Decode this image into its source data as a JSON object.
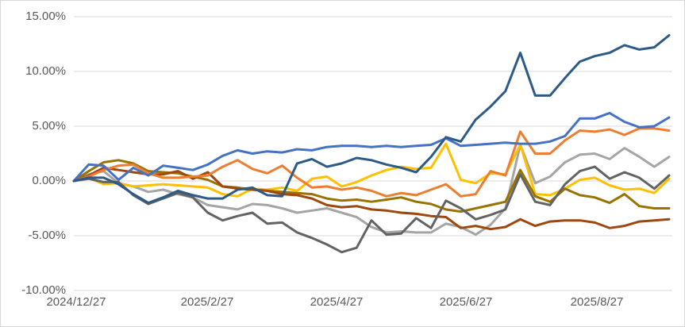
{
  "chart_data": {
    "type": "line",
    "title": "",
    "xlabel": "",
    "ylabel": "",
    "legend": "none",
    "grid": true,
    "ylim": [
      -10,
      15
    ],
    "y_gridlines_pct": [
      15,
      10,
      5,
      0,
      -5,
      -10
    ],
    "y_tick_labels": [
      "15.00%",
      "10.00%",
      "5.00%",
      "0.00%",
      "-5.00%",
      "-10.00%"
    ],
    "x_tick_labels": [
      "2024/12/27",
      "2025/2/27",
      "2025/4/27",
      "2025/6/27",
      "2025/8/27"
    ],
    "x_unit": "weekly",
    "x": [
      "2024/12/27",
      "2025/1/3",
      "2025/1/10",
      "2025/1/17",
      "2025/1/24",
      "2025/1/31",
      "2025/2/7",
      "2025/2/14",
      "2025/2/21",
      "2025/2/28",
      "2025/3/7",
      "2025/3/14",
      "2025/3/21",
      "2025/3/28",
      "2025/4/4",
      "2025/4/11",
      "2025/4/18",
      "2025/4/25",
      "2025/5/2",
      "2025/5/9",
      "2025/5/16",
      "2025/5/23",
      "2025/5/30",
      "2025/6/6",
      "2025/6/13",
      "2025/6/20",
      "2025/6/27",
      "2025/7/4",
      "2025/7/11",
      "2025/7/18",
      "2025/7/25",
      "2025/8/1",
      "2025/8/8",
      "2025/8/15",
      "2025/8/22",
      "2025/8/29",
      "2025/9/5",
      "2025/9/12",
      "2025/9/19",
      "2025/9/26",
      "2025/10/3"
    ],
    "value_unit": "percent",
    "series": [
      {
        "name": "light-gray-line",
        "color": "#A5A5A5",
        "values": [
          0,
          0.6,
          0.9,
          -0.2,
          -0.5,
          -1.0,
          -0.8,
          -1.2,
          -1.5,
          -2.2,
          -2.4,
          -2.6,
          -2.1,
          -2.2,
          -2.5,
          -2.9,
          -2.7,
          -2.5,
          -2.9,
          -3.3,
          -4.2,
          -4.7,
          -4.6,
          -4.7,
          -4.7,
          -3.9,
          -4.2,
          -4.9,
          -4.0,
          -2.5,
          3.3,
          -0.2,
          0.4,
          1.7,
          2.4,
          2.5,
          2.0,
          3.0,
          2.2,
          1.3,
          2.2
        ]
      },
      {
        "name": "yellow-line",
        "color": "#FFC000",
        "values": [
          0,
          0.3,
          -0.3,
          -0.2,
          -0.5,
          -0.4,
          -0.3,
          -0.4,
          -0.5,
          -0.6,
          -1.2,
          -1.4,
          -0.7,
          -0.8,
          -0.6,
          -0.9,
          0.2,
          0.4,
          -0.5,
          -0.1,
          0.5,
          1.0,
          1.3,
          1.1,
          1.2,
          3.4,
          0.1,
          -0.2,
          0.7,
          0.6,
          3.3,
          -1.2,
          -1.3,
          -0.7,
          0.1,
          0.3,
          -0.4,
          -0.8,
          -0.7,
          -1.1,
          0.2
        ]
      },
      {
        "name": "olive-line",
        "color": "#997300",
        "values": [
          0,
          0.9,
          1.7,
          1.9,
          1.6,
          0.9,
          0.8,
          0.7,
          0.4,
          0.1,
          -0.5,
          -0.6,
          -0.8,
          -0.9,
          -1.0,
          -1.1,
          -1.2,
          -1.6,
          -1.8,
          -1.7,
          -1.9,
          -1.7,
          -1.5,
          -1.9,
          -2.1,
          -2.6,
          -2.8,
          -2.5,
          -2.2,
          -1.9,
          1.0,
          -1.4,
          -1.9,
          -0.7,
          -1.3,
          -1.5,
          -2.0,
          -1.2,
          -2.3,
          -2.5,
          -2.5
        ]
      },
      {
        "name": "brown-line",
        "color": "#9E480E",
        "values": [
          0,
          0.5,
          1.2,
          1.0,
          0.8,
          0.6,
          0.6,
          0.9,
          0.2,
          0.8,
          -0.5,
          -0.7,
          -0.8,
          -0.9,
          -1.2,
          -1.3,
          -1.6,
          -2.2,
          -2.4,
          -2.3,
          -2.6,
          -2.7,
          -2.9,
          -3.0,
          -3.2,
          -3.3,
          -4.3,
          -4.1,
          -4.4,
          -4.2,
          -3.5,
          -4.1,
          -3.7,
          -3.6,
          -3.6,
          -3.8,
          -4.3,
          -4.1,
          -3.7,
          -3.6,
          -3.5
        ]
      },
      {
        "name": "dark-gray-line",
        "color": "#636363",
        "values": [
          0,
          0.2,
          -0.1,
          -0.1,
          -1.3,
          -2.1,
          -1.6,
          -1.1,
          -1.5,
          -2.9,
          -3.6,
          -3.2,
          -2.9,
          -3.9,
          -3.8,
          -4.7,
          -5.2,
          -5.8,
          -6.5,
          -6.1,
          -3.6,
          -4.9,
          -4.8,
          -3.4,
          -4.3,
          -1.8,
          -2.5,
          -3.5,
          -3.1,
          -2.6,
          0.6,
          -1.9,
          -2.2,
          -0.3,
          0.9,
          1.3,
          0.2,
          0.8,
          0.3,
          -0.7,
          0.5
        ]
      },
      {
        "name": "orange-line",
        "color": "#ED7D31",
        "values": [
          0,
          0.4,
          1.0,
          1.4,
          1.5,
          0.7,
          0.3,
          0.3,
          0.4,
          0.5,
          1.3,
          1.9,
          1.1,
          0.7,
          1.4,
          0.3,
          -0.6,
          -0.5,
          -0.8,
          -0.6,
          -0.9,
          -1.4,
          -1.1,
          -1.3,
          -0.8,
          -0.3,
          -1.4,
          -1.2,
          0.9,
          0.5,
          4.5,
          2.5,
          2.5,
          3.7,
          4.6,
          4.5,
          4.7,
          4.2,
          4.8,
          4.8,
          4.6
        ]
      },
      {
        "name": "royal-blue-line",
        "color": "#4472C4",
        "values": [
          0,
          1.5,
          1.4,
          0.1,
          1.2,
          0.5,
          1.4,
          1.2,
          1.0,
          1.5,
          2.3,
          2.8,
          2.5,
          2.7,
          2.6,
          2.9,
          2.8,
          3.1,
          3.2,
          3.2,
          3.1,
          3.2,
          3.1,
          3.2,
          3.3,
          3.9,
          3.2,
          3.3,
          3.4,
          3.5,
          3.4,
          3.4,
          3.6,
          4.1,
          5.7,
          5.7,
          6.2,
          5.4,
          4.9,
          5.0,
          5.8
        ]
      },
      {
        "name": "navy-blue-line",
        "color": "#2D5A87",
        "values": [
          0,
          0.3,
          0.3,
          -0.3,
          -1.2,
          -2.0,
          -1.5,
          -0.9,
          -1.3,
          -1.6,
          -1.6,
          -0.8,
          -0.6,
          -1.3,
          -1.4,
          1.6,
          2.0,
          1.3,
          1.6,
          2.1,
          1.9,
          1.5,
          1.2,
          0.8,
          2.2,
          4.0,
          3.6,
          5.6,
          6.8,
          8.2,
          11.7,
          7.8,
          7.8,
          9.4,
          10.9,
          11.4,
          11.7,
          12.4,
          12.0,
          12.2,
          13.3
        ]
      }
    ]
  },
  "colors": {
    "background": "#FFFFFF",
    "border": "#D9D9D9",
    "gridline": "#D9D9D9",
    "axis_text": "#595959"
  }
}
